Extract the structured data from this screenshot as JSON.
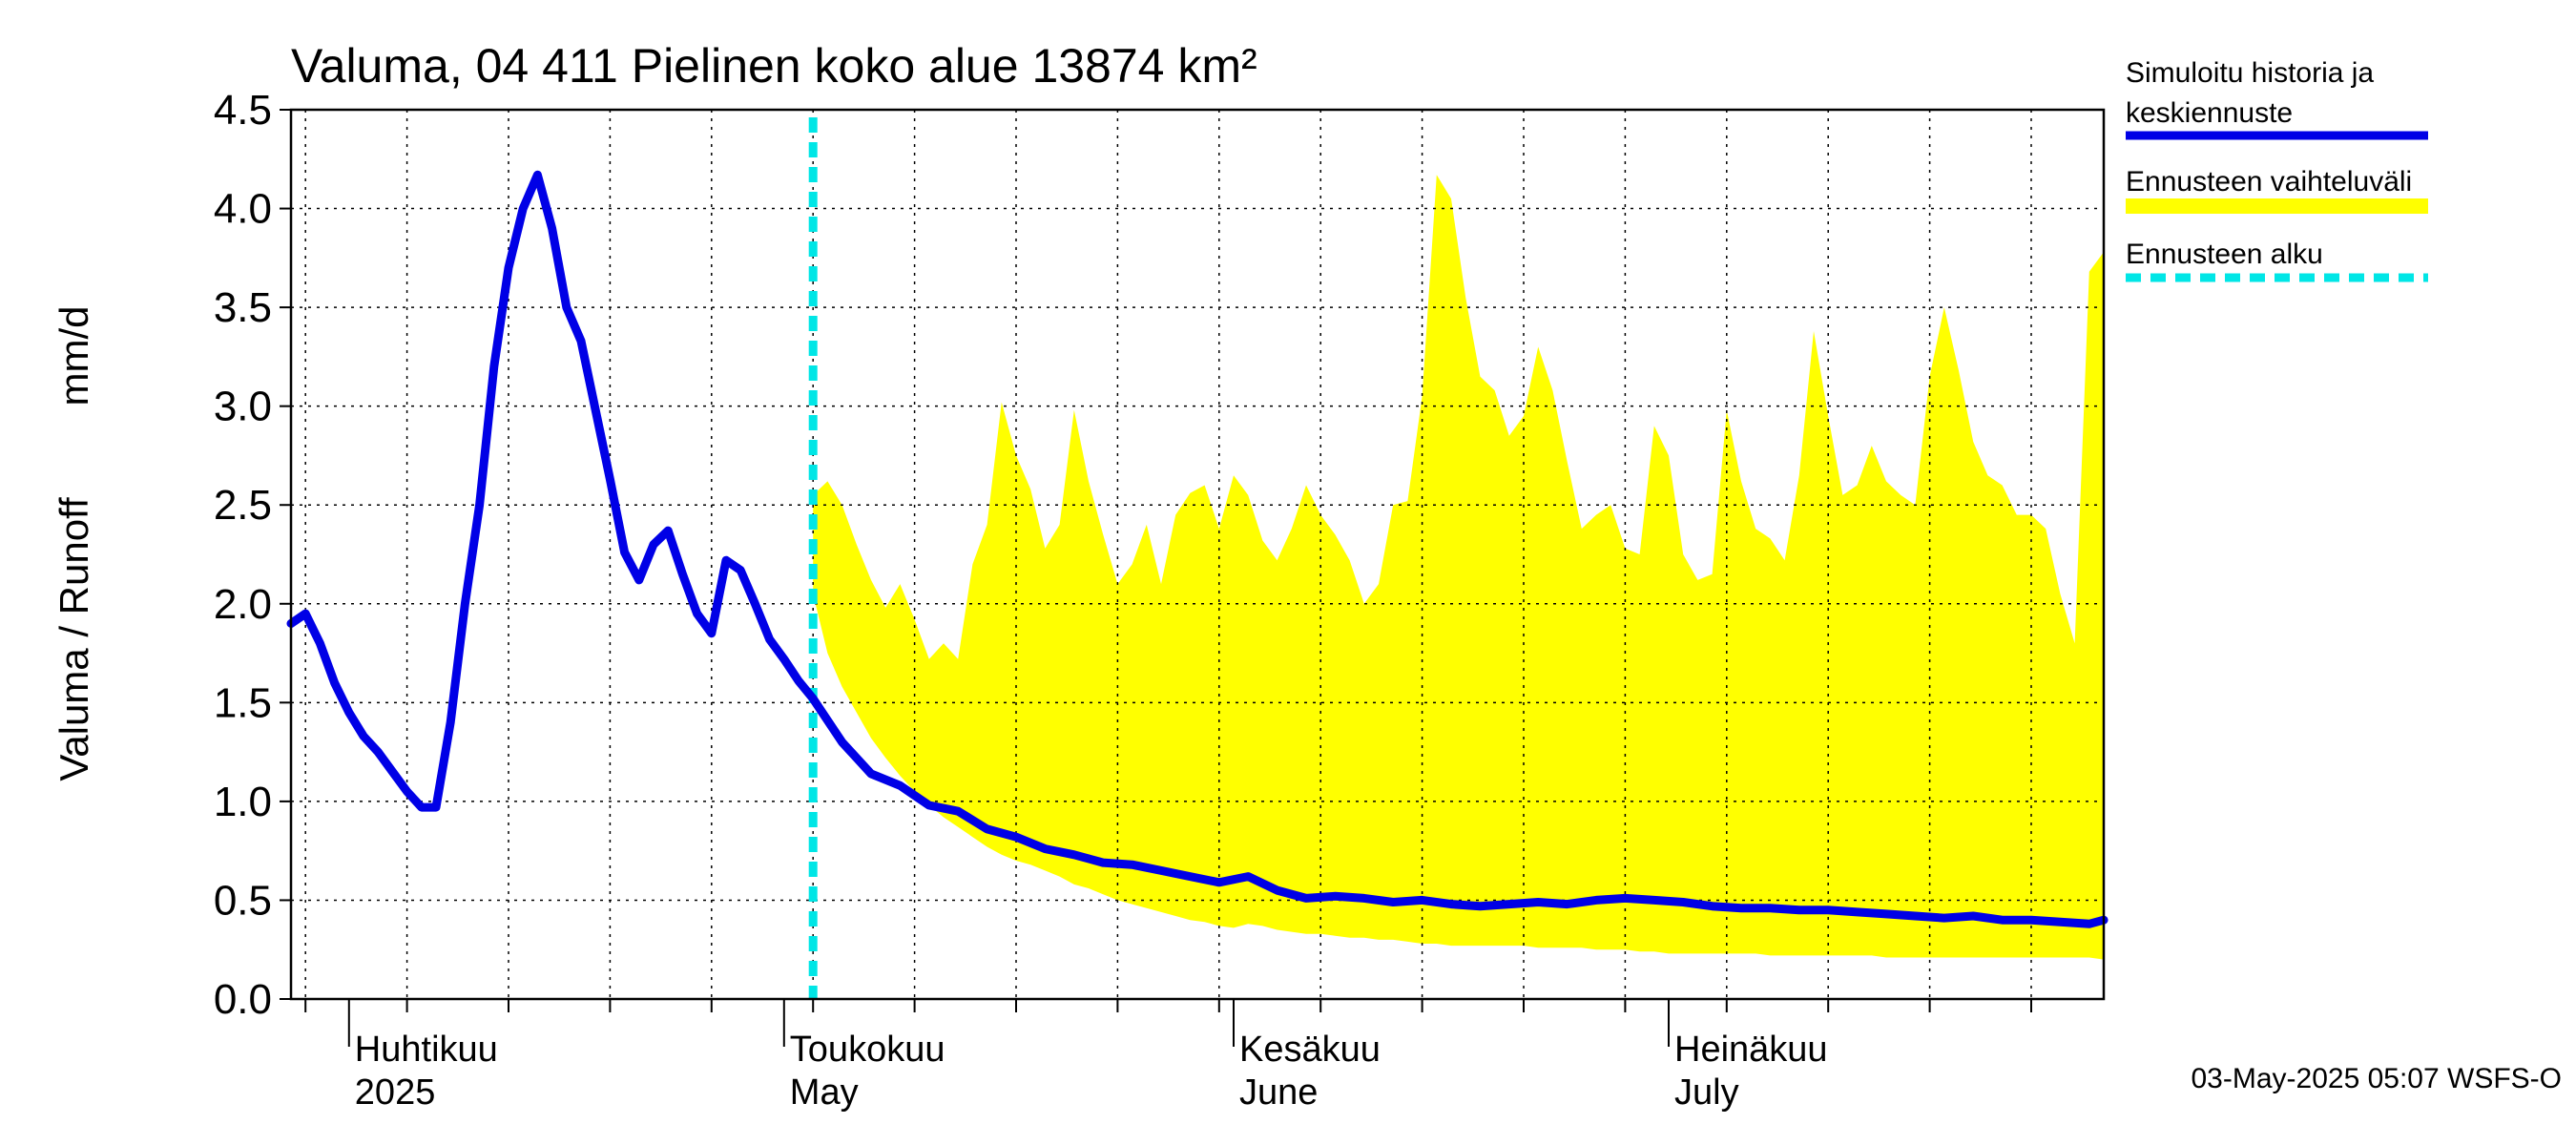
{
  "chart_data": {
    "type": "line",
    "title": "Valuma, 04 411 Pielinen koko alue 13874 km²",
    "ylabel_left": "Valuma / Runoff",
    "ylabel_right": "mm/d",
    "ylim": [
      0,
      4.5
    ],
    "y_ticks": [
      "0.0",
      "0.5",
      "1.0",
      "1.5",
      "2.0",
      "2.5",
      "3.0",
      "3.5",
      "4.0",
      "4.5"
    ],
    "x_range": [
      "2025-03-28",
      "2025-07-31"
    ],
    "month_labels": [
      {
        "date": "2025-04-01",
        "fi": "Huhtikuu",
        "en": "2025"
      },
      {
        "date": "2025-05-01",
        "fi": "Toukokuu",
        "en": "May"
      },
      {
        "date": "2025-06-01",
        "fi": "Kesäkuu",
        "en": "June"
      },
      {
        "date": "2025-07-01",
        "fi": "Heinäkuu",
        "en": "July"
      }
    ],
    "forecast_start": "2025-05-03",
    "legend": [
      {
        "label_lines": [
          "Simuloitu historia ja",
          "keskiennuste"
        ],
        "color": "#0000e6",
        "style": "line"
      },
      {
        "label_lines": [
          "Ennusteen vaihteluväli"
        ],
        "color": "#ffff00",
        "style": "band"
      },
      {
        "label_lines": [
          "Ennusteen alku"
        ],
        "color": "#00e6e6",
        "style": "dashed"
      }
    ],
    "footer": "03-May-2025 05:07 WSFS-O",
    "colors": {
      "median": "#0000e6",
      "band": "#ffff00",
      "forecast_start": "#00e6e6",
      "grid": "#000000"
    },
    "series": [
      {
        "name": "Simuloitu historia ja keskiennuste",
        "x": [
          "2025-03-28",
          "2025-03-29",
          "2025-03-30",
          "2025-03-31",
          "2025-04-01",
          "2025-04-02",
          "2025-04-03",
          "2025-04-04",
          "2025-04-05",
          "2025-04-06",
          "2025-04-07",
          "2025-04-08",
          "2025-04-09",
          "2025-04-10",
          "2025-04-11",
          "2025-04-12",
          "2025-04-13",
          "2025-04-14",
          "2025-04-15",
          "2025-04-16",
          "2025-04-17",
          "2025-04-18",
          "2025-04-19",
          "2025-04-20",
          "2025-04-21",
          "2025-04-22",
          "2025-04-23",
          "2025-04-24",
          "2025-04-25",
          "2025-04-26",
          "2025-04-27",
          "2025-04-28",
          "2025-04-29",
          "2025-04-30",
          "2025-05-01",
          "2025-05-02",
          "2025-05-03",
          "2025-05-05",
          "2025-05-07",
          "2025-05-09",
          "2025-05-11",
          "2025-05-13",
          "2025-05-15",
          "2025-05-17",
          "2025-05-19",
          "2025-05-21",
          "2025-05-23",
          "2025-05-25",
          "2025-05-27",
          "2025-05-29",
          "2025-05-31",
          "2025-06-02",
          "2025-06-04",
          "2025-06-06",
          "2025-06-08",
          "2025-06-10",
          "2025-06-12",
          "2025-06-14",
          "2025-06-16",
          "2025-06-18",
          "2025-06-20",
          "2025-06-22",
          "2025-06-24",
          "2025-06-26",
          "2025-06-28",
          "2025-06-30",
          "2025-07-02",
          "2025-07-04",
          "2025-07-06",
          "2025-07-08",
          "2025-07-10",
          "2025-07-12",
          "2025-07-14",
          "2025-07-16",
          "2025-07-18",
          "2025-07-20",
          "2025-07-22",
          "2025-07-24",
          "2025-07-26",
          "2025-07-28",
          "2025-07-30",
          "2025-07-31"
        ],
        "values": [
          1.9,
          1.95,
          1.8,
          1.6,
          1.45,
          1.33,
          1.25,
          1.15,
          1.05,
          0.97,
          0.97,
          1.4,
          2.0,
          2.5,
          3.2,
          3.7,
          4.0,
          4.17,
          3.9,
          3.5,
          3.33,
          2.98,
          2.63,
          2.26,
          2.12,
          2.3,
          2.37,
          2.15,
          1.95,
          1.85,
          2.22,
          2.17,
          2.0,
          1.82,
          1.72,
          1.61,
          1.52,
          1.3,
          1.14,
          1.08,
          0.98,
          0.95,
          0.86,
          0.82,
          0.76,
          0.73,
          0.69,
          0.68,
          0.65,
          0.62,
          0.59,
          0.62,
          0.55,
          0.51,
          0.52,
          0.51,
          0.49,
          0.5,
          0.48,
          0.47,
          0.48,
          0.49,
          0.48,
          0.5,
          0.51,
          0.5,
          0.49,
          0.47,
          0.46,
          0.46,
          0.45,
          0.45,
          0.44,
          0.43,
          0.42,
          0.41,
          0.42,
          0.4,
          0.4,
          0.39,
          0.38,
          0.4
        ]
      }
    ],
    "band": {
      "name": "Ennusteen vaihteluväli",
      "x": [
        "2025-05-03",
        "2025-05-04",
        "2025-05-05",
        "2025-05-06",
        "2025-05-07",
        "2025-05-08",
        "2025-05-09",
        "2025-05-10",
        "2025-05-11",
        "2025-05-12",
        "2025-05-13",
        "2025-05-14",
        "2025-05-15",
        "2025-05-16",
        "2025-05-17",
        "2025-05-18",
        "2025-05-19",
        "2025-05-20",
        "2025-05-21",
        "2025-05-22",
        "2025-05-23",
        "2025-05-24",
        "2025-05-25",
        "2025-05-26",
        "2025-05-27",
        "2025-05-28",
        "2025-05-29",
        "2025-05-30",
        "2025-05-31",
        "2025-06-01",
        "2025-06-02",
        "2025-06-03",
        "2025-06-04",
        "2025-06-05",
        "2025-06-06",
        "2025-06-07",
        "2025-06-08",
        "2025-06-09",
        "2025-06-10",
        "2025-06-11",
        "2025-06-12",
        "2025-06-13",
        "2025-06-14",
        "2025-06-15",
        "2025-06-16",
        "2025-06-17",
        "2025-06-18",
        "2025-06-19",
        "2025-06-20",
        "2025-06-21",
        "2025-06-22",
        "2025-06-23",
        "2025-06-24",
        "2025-06-25",
        "2025-06-26",
        "2025-06-27",
        "2025-06-28",
        "2025-06-29",
        "2025-06-30",
        "2025-07-01",
        "2025-07-02",
        "2025-07-03",
        "2025-07-04",
        "2025-07-05",
        "2025-07-06",
        "2025-07-07",
        "2025-07-08",
        "2025-07-09",
        "2025-07-10",
        "2025-07-11",
        "2025-07-12",
        "2025-07-13",
        "2025-07-14",
        "2025-07-15",
        "2025-07-16",
        "2025-07-17",
        "2025-07-18",
        "2025-07-19",
        "2025-07-20",
        "2025-07-21",
        "2025-07-22",
        "2025-07-23",
        "2025-07-24",
        "2025-07-25",
        "2025-07-26",
        "2025-07-27",
        "2025-07-28",
        "2025-07-29",
        "2025-07-30",
        "2025-07-31"
      ],
      "upper": [
        2.55,
        2.62,
        2.5,
        2.3,
        2.12,
        1.98,
        2.1,
        1.92,
        1.72,
        1.8,
        1.72,
        2.2,
        2.4,
        3.02,
        2.75,
        2.58,
        2.28,
        2.4,
        2.98,
        2.62,
        2.35,
        2.1,
        2.2,
        2.4,
        2.1,
        2.45,
        2.56,
        2.6,
        2.38,
        2.65,
        2.55,
        2.32,
        2.22,
        2.38,
        2.6,
        2.45,
        2.35,
        2.22,
        2.0,
        2.1,
        2.5,
        2.52,
        3.05,
        4.17,
        4.05,
        3.55,
        3.15,
        3.08,
        2.85,
        2.95,
        3.3,
        3.08,
        2.72,
        2.38,
        2.45,
        2.5,
        2.28,
        2.25,
        2.9,
        2.75,
        2.25,
        2.12,
        2.15,
        2.98,
        2.62,
        2.38,
        2.33,
        2.22,
        2.65,
        3.38,
        2.95,
        2.55,
        2.6,
        2.8,
        2.62,
        2.55,
        2.5,
        3.15,
        3.5,
        3.18,
        2.82,
        2.65,
        2.6,
        2.45,
        2.45,
        2.38,
        2.05,
        1.8,
        3.68,
        3.78
      ],
      "lower": [
        2.05,
        1.75,
        1.58,
        1.45,
        1.32,
        1.22,
        1.13,
        1.05,
        0.98,
        0.92,
        0.87,
        0.82,
        0.77,
        0.73,
        0.7,
        0.68,
        0.65,
        0.62,
        0.58,
        0.56,
        0.53,
        0.5,
        0.48,
        0.46,
        0.44,
        0.42,
        0.4,
        0.39,
        0.37,
        0.36,
        0.38,
        0.37,
        0.35,
        0.34,
        0.33,
        0.33,
        0.32,
        0.31,
        0.31,
        0.3,
        0.3,
        0.29,
        0.28,
        0.28,
        0.27,
        0.27,
        0.27,
        0.27,
        0.27,
        0.27,
        0.26,
        0.26,
        0.26,
        0.26,
        0.25,
        0.25,
        0.25,
        0.24,
        0.24,
        0.23,
        0.23,
        0.23,
        0.23,
        0.23,
        0.23,
        0.23,
        0.22,
        0.22,
        0.22,
        0.22,
        0.22,
        0.22,
        0.22,
        0.22,
        0.21,
        0.21,
        0.21,
        0.21,
        0.21,
        0.21,
        0.21,
        0.21,
        0.21,
        0.21,
        0.21,
        0.21,
        0.21,
        0.21,
        0.21,
        0.2
      ]
    }
  }
}
